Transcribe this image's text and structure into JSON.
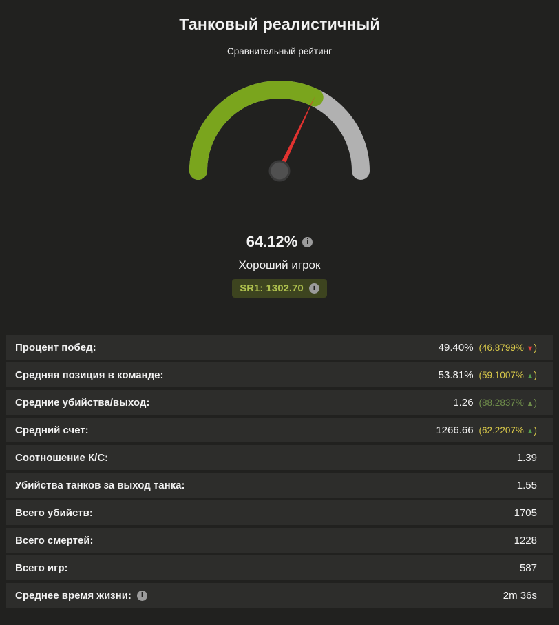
{
  "header": {
    "title": "Танковый реалистичный",
    "subtitle": "Сравнительный рейтинг"
  },
  "icons": {
    "info": "i"
  },
  "gauge": {
    "value_percent": 64.12,
    "value_label": "64.12%",
    "player_rating": "Хороший игрок",
    "sr_badge": "SR1: 1302.70",
    "colors": {
      "fill": "#7aa51d",
      "track": "#b1b1b1",
      "needle": "#e0322f",
      "hub": "#505050"
    }
  },
  "chart_data": [
    {
      "type": "gauge",
      "title": "Сравнительный рейтинг",
      "value": 64.12,
      "min": 0,
      "max": 100,
      "unit": "%",
      "label": "Хороший игрок",
      "secondary_value": "SR1: 1302.70",
      "fill_color": "#7aa51d",
      "track_color": "#b1b1b1"
    },
    {
      "type": "table",
      "rows": [
        [
          "Процент побед:",
          "49.40%",
          "(46.8799% ▼)"
        ],
        [
          "Средняя позиция в команде:",
          "53.81%",
          "(59.1007% ▲)"
        ],
        [
          "Средние убийства/выход:",
          "1.26",
          "(88.2837% ▲)"
        ],
        [
          "Средний счет:",
          "1266.66",
          "(62.2207% ▲)"
        ],
        [
          "Соотношение К/С:",
          "1.39",
          ""
        ],
        [
          "Убийства танков за выход танка:",
          "1.55",
          ""
        ],
        [
          "Всего убийств:",
          "1705",
          ""
        ],
        [
          "Всего смертей:",
          "1228",
          ""
        ],
        [
          "Всего игр:",
          "587",
          ""
        ],
        [
          "Среднее время жизни:",
          "2m 36s",
          ""
        ]
      ]
    }
  ],
  "stats": {
    "rows": [
      {
        "label": "Процент побед:",
        "value": "49.40%",
        "change_prefix": "(46.8799% ",
        "arrow": "▼",
        "change_suffix": ")",
        "change_color": "#d9c94a",
        "arrow_color": "#e8413c"
      },
      {
        "label": "Средняя позиция в команде:",
        "value": "53.81%",
        "change_prefix": "(59.1007% ",
        "arrow": "▲",
        "change_suffix": ")",
        "change_color": "#d9c94a",
        "arrow_color": "#53a04b"
      },
      {
        "label": "Средние убийства/выход:",
        "value": "1.26",
        "change_prefix": "(88.2837% ",
        "arrow": "▲",
        "change_suffix": ")",
        "change_color": "#6f8d4b",
        "arrow_color": "#6f8d4b"
      },
      {
        "label": "Средний счет:",
        "value": "1266.66",
        "change_prefix": "(62.2207% ",
        "arrow": "▲",
        "change_suffix": ")",
        "change_color": "#d9c94a",
        "arrow_color": "#53a04b"
      },
      {
        "label": "Соотношение К/С:",
        "value": "1.39"
      },
      {
        "label": "Убийства танков за выход танка:",
        "value": "1.55"
      },
      {
        "label": "Всего убийств:",
        "value": "1705"
      },
      {
        "label": "Всего смертей:",
        "value": "1228"
      },
      {
        "label": "Всего игр:",
        "value": "587"
      },
      {
        "label": "Среднее время жизни:",
        "value": "2m 36s"
      }
    ]
  }
}
